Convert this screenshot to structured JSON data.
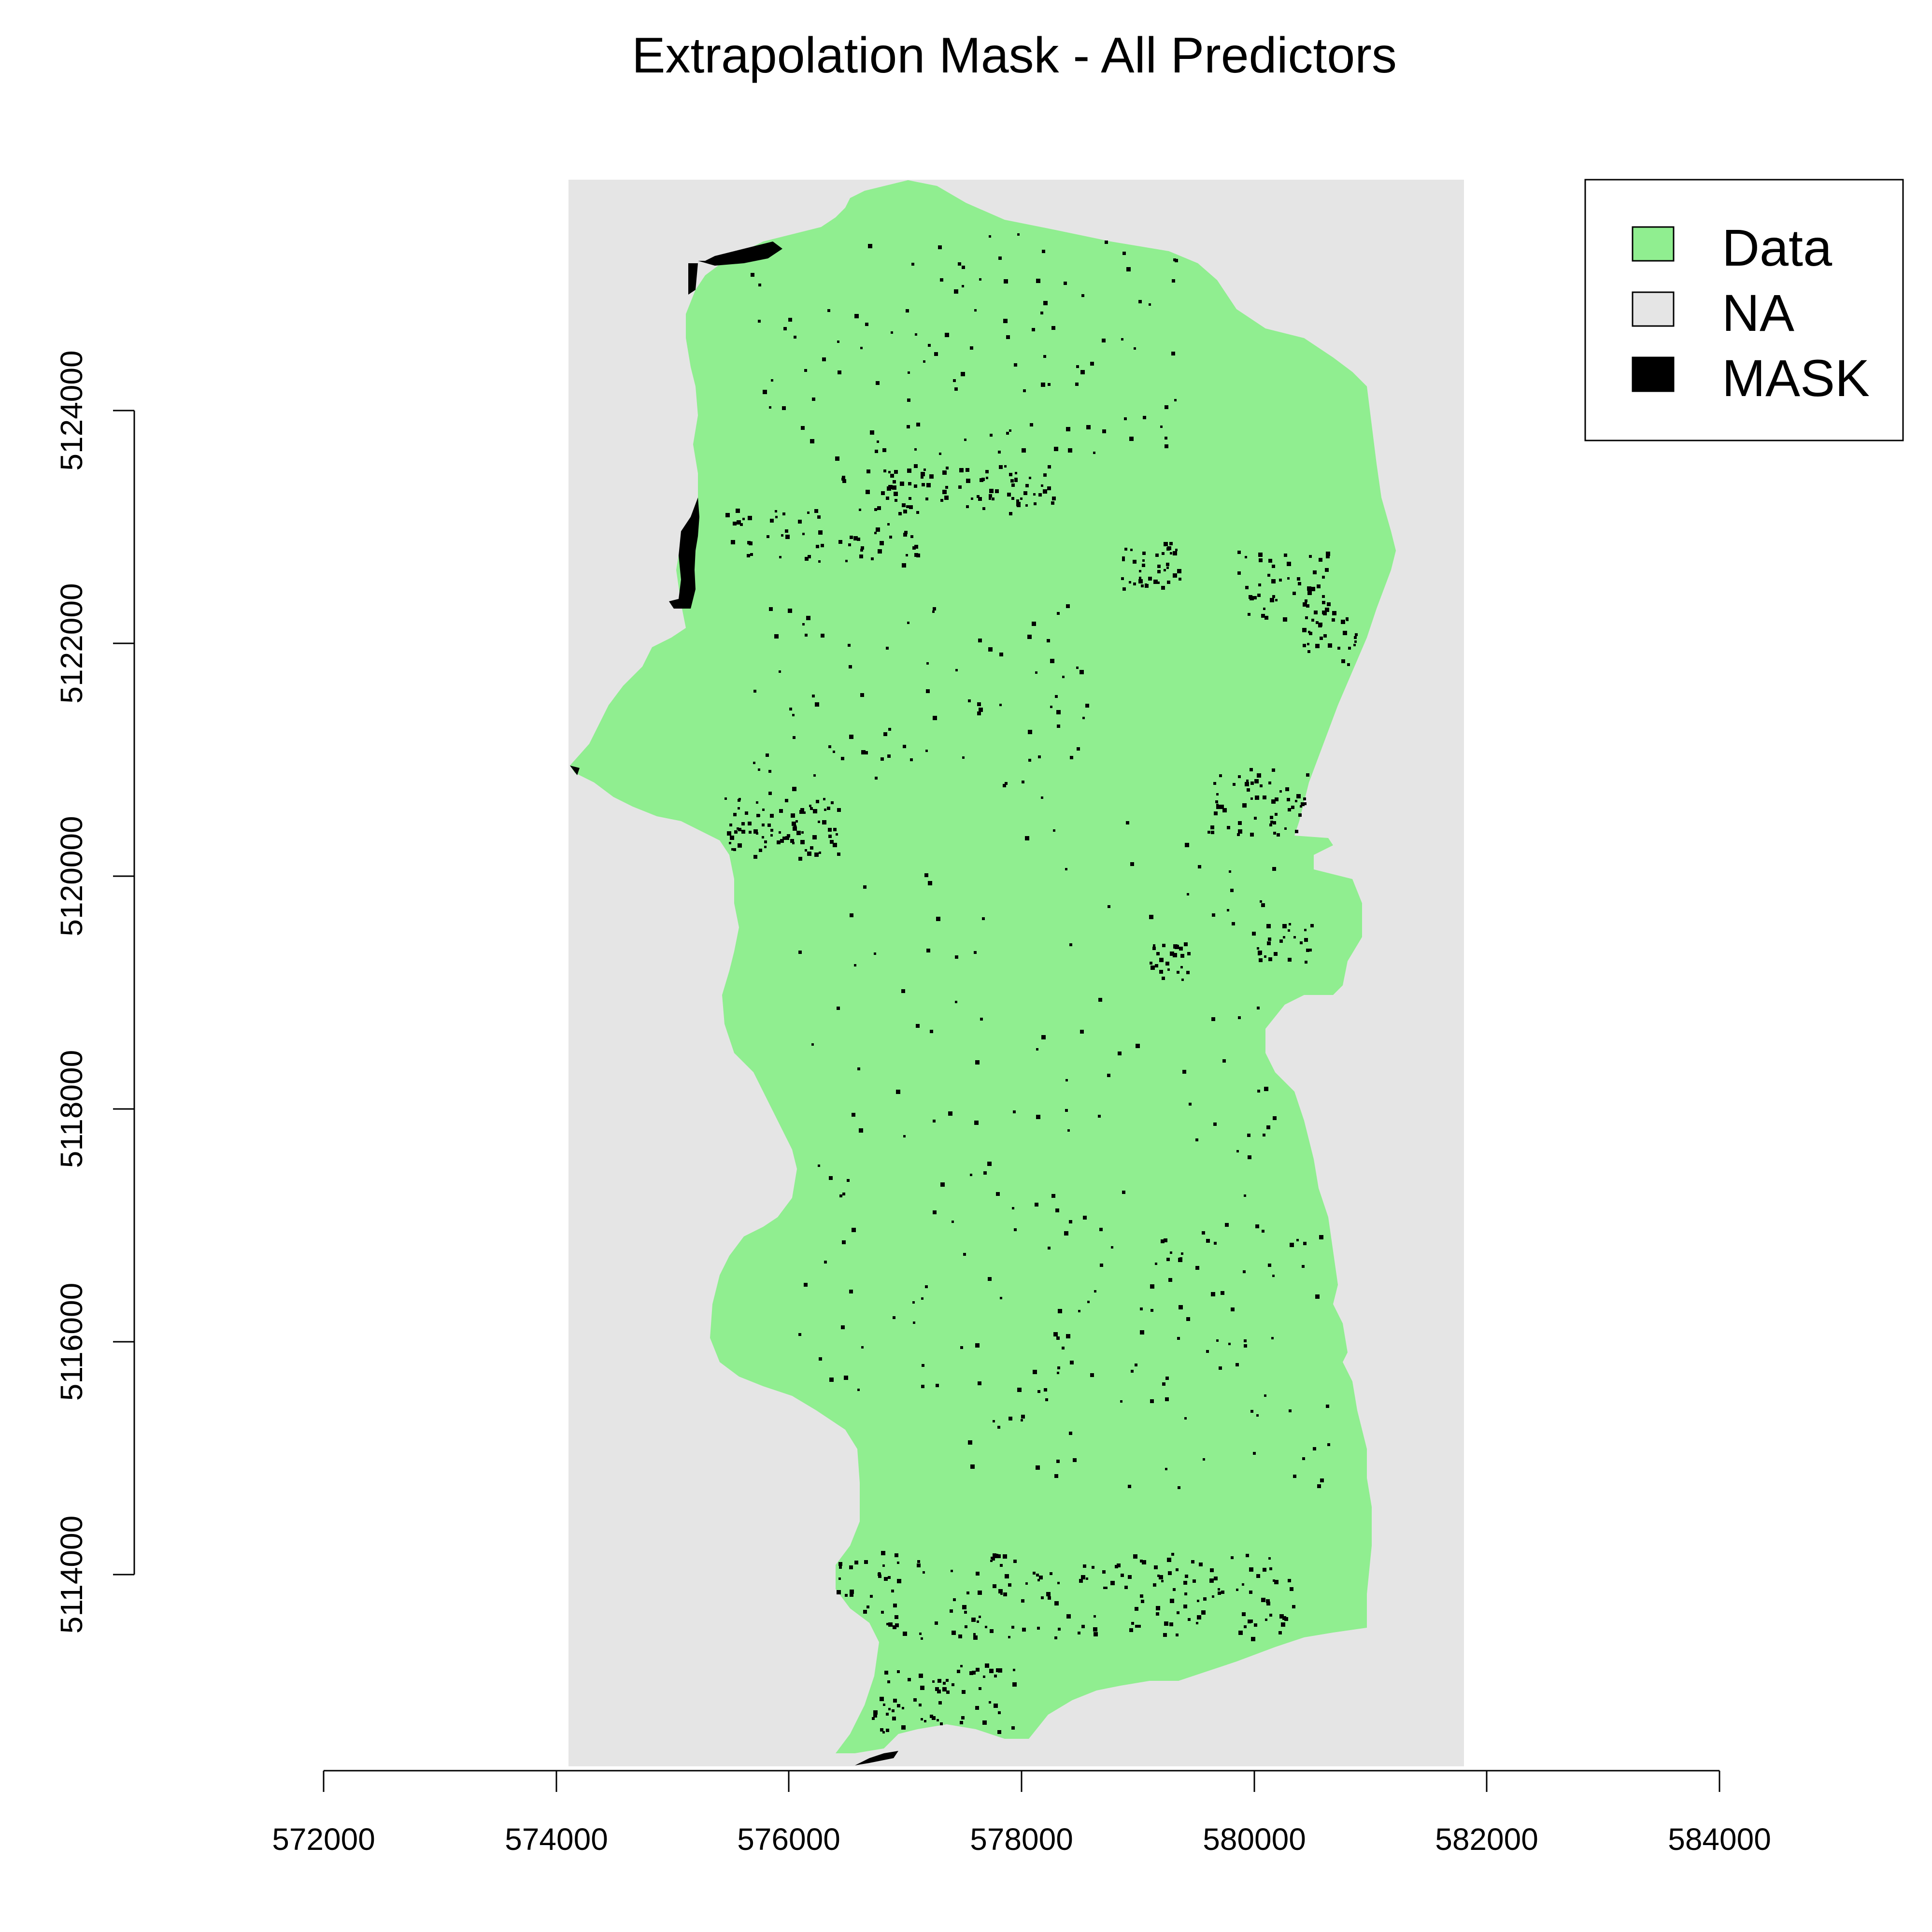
{
  "title": "Extrapolation Mask - All Predictors",
  "colors": {
    "data": "#90EE90",
    "na": "#E5E5E5",
    "mask": "#000000",
    "background": "#FFFFFF"
  },
  "axes": {
    "x_ticks": [
      "572000",
      "574000",
      "576000",
      "578000",
      "580000",
      "582000",
      "584000"
    ],
    "y_ticks": [
      "5114000",
      "5116000",
      "5118000",
      "5120000",
      "5122000",
      "5124000"
    ]
  },
  "legend": {
    "placement": "top-right",
    "items": [
      {
        "label": "Data",
        "color": "#90EE90"
      },
      {
        "label": "NA",
        "color": "#E5E5E5"
      },
      {
        "label": "MASK",
        "color": "#000000"
      }
    ]
  }
}
